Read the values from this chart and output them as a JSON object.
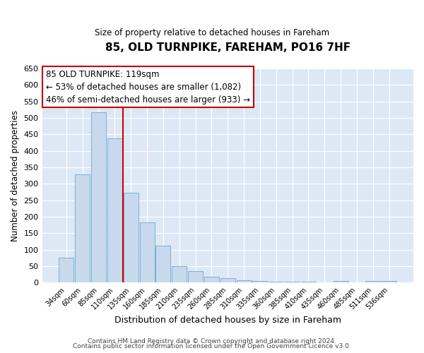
{
  "title": "85, OLD TURNPIKE, FAREHAM, PO16 7HF",
  "subtitle": "Size of property relative to detached houses in Fareham",
  "xlabel": "Distribution of detached houses by size in Fareham",
  "ylabel": "Number of detached properties",
  "bar_labels": [
    "34sqm",
    "60sqm",
    "85sqm",
    "110sqm",
    "135sqm",
    "160sqm",
    "185sqm",
    "210sqm",
    "235sqm",
    "260sqm",
    "285sqm",
    "310sqm",
    "335sqm",
    "360sqm",
    "385sqm",
    "410sqm",
    "435sqm",
    "460sqm",
    "485sqm",
    "511sqm",
    "536sqm"
  ],
  "bar_values": [
    75,
    328,
    518,
    438,
    272,
    183,
    113,
    50,
    35,
    18,
    13,
    8,
    4,
    3,
    3,
    3,
    0,
    5,
    0,
    5,
    4
  ],
  "bar_color": "#c8d9ee",
  "bar_edgecolor": "#7bafd4",
  "vline_x_idx": 3,
  "vline_color": "#cc0000",
  "ylim": [
    0,
    650
  ],
  "yticks": [
    0,
    50,
    100,
    150,
    200,
    250,
    300,
    350,
    400,
    450,
    500,
    550,
    600,
    650
  ],
  "annotation_title": "85 OLD TURNPIKE: 119sqm",
  "annotation_line1": "← 53% of detached houses are smaller (1,082)",
  "annotation_line2": "46% of semi-detached houses are larger (933) →",
  "annotation_box_color": "#ffffff",
  "annotation_box_edgecolor": "#cc0000",
  "footer1": "Contains HM Land Registry data © Crown copyright and database right 2024.",
  "footer2": "Contains public sector information licensed under the Open Government Licence v3.0.",
  "bg_color": "#ffffff",
  "plot_bg_color": "#dce8f5"
}
